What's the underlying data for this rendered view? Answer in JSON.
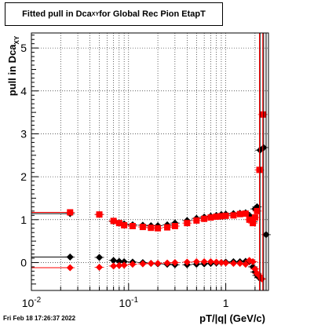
{
  "title": {
    "prefix": "Fitted pull in Dca",
    "subscript": "XY",
    "suffix": " for Global Rec Pion EtapT"
  },
  "footer_timestamp": "Fri Feb 18 17:26:37 2022",
  "colors": {
    "series_black": "#000000",
    "series_red": "#ff0000",
    "grid": "#000000"
  },
  "chart_data": {
    "type": "scatter",
    "title": "Fitted pull in Dca_XY for Global Rec Pion EtapT",
    "xlabel": "pT/|q| (GeV/c)",
    "ylabel": "pull in Dca_XY",
    "xscale": "log",
    "xlim": [
      0.01,
      2.75
    ],
    "ylim": [
      -0.65,
      5.35
    ],
    "grid": true,
    "legend": "none",
    "x_ticks": [
      {
        "value": 0.01,
        "base": "10",
        "exp": "-2"
      },
      {
        "value": 0.1,
        "base": "10",
        "exp": "-1"
      },
      {
        "value": 1,
        "base": "1",
        "exp": ""
      }
    ],
    "y_ticks": [
      "0",
      "1",
      "2",
      "3",
      "4",
      "5"
    ],
    "series": [
      {
        "color": "#000000",
        "marker": "diamond",
        "points": [
          [
            0.025,
            0.13
          ],
          [
            0.05,
            0.12
          ],
          [
            0.07,
            0.05
          ],
          [
            0.08,
            0.03
          ],
          [
            0.09,
            0.02
          ],
          [
            0.11,
            0.01
          ],
          [
            0.14,
            0.0
          ],
          [
            0.17,
            -0.02
          ],
          [
            0.2,
            -0.03
          ],
          [
            0.25,
            -0.04
          ],
          [
            0.3,
            -0.05
          ],
          [
            0.4,
            -0.05
          ],
          [
            0.5,
            -0.04
          ],
          [
            0.6,
            -0.03
          ],
          [
            0.7,
            -0.02
          ],
          [
            0.8,
            -0.01
          ],
          [
            0.9,
            0.0
          ],
          [
            1.0,
            0.01
          ],
          [
            1.2,
            0.02
          ],
          [
            1.4,
            0.02
          ],
          [
            1.6,
            0.03
          ],
          [
            1.75,
            0.02
          ],
          [
            1.9,
            -0.1
          ],
          [
            2.0,
            -0.22
          ],
          [
            2.1,
            -0.3
          ],
          [
            2.2,
            -0.35
          ],
          [
            2.6,
            0.65
          ]
        ]
      },
      {
        "color": "#000000",
        "marker": "diamond",
        "points": [
          [
            0.025,
            1.14
          ],
          [
            0.05,
            1.12
          ],
          [
            0.07,
            0.96
          ],
          [
            0.08,
            0.92
          ],
          [
            0.09,
            0.9
          ],
          [
            0.11,
            0.88
          ],
          [
            0.14,
            0.87
          ],
          [
            0.17,
            0.86
          ],
          [
            0.2,
            0.86
          ],
          [
            0.25,
            0.88
          ],
          [
            0.3,
            0.92
          ],
          [
            0.4,
            0.98
          ],
          [
            0.5,
            1.03
          ],
          [
            0.6,
            1.06
          ],
          [
            0.7,
            1.08
          ],
          [
            0.8,
            1.1
          ],
          [
            0.9,
            1.12
          ],
          [
            1.0,
            1.13
          ],
          [
            1.2,
            1.14
          ],
          [
            1.4,
            1.15
          ],
          [
            1.6,
            1.16
          ],
          [
            1.75,
            1.1
          ],
          [
            1.9,
            0.95
          ],
          [
            2.0,
            1.25
          ],
          [
            2.1,
            1.3
          ],
          [
            2.25,
            2.62
          ],
          [
            2.45,
            2.68
          ]
        ]
      },
      {
        "color": "#ff0000",
        "marker": "diamond",
        "points": [
          [
            0.025,
            -0.12
          ],
          [
            0.05,
            -0.11
          ],
          [
            0.07,
            -0.08
          ],
          [
            0.08,
            -0.07
          ],
          [
            0.09,
            -0.06
          ],
          [
            0.11,
            -0.04
          ],
          [
            0.14,
            -0.03
          ],
          [
            0.17,
            -0.02
          ],
          [
            0.2,
            -0.02
          ],
          [
            0.25,
            -0.01
          ],
          [
            0.3,
            0.0
          ],
          [
            0.4,
            0.01
          ],
          [
            0.5,
            0.02
          ],
          [
            0.6,
            0.02
          ],
          [
            0.7,
            0.02
          ],
          [
            0.8,
            0.01
          ],
          [
            0.9,
            0.0
          ],
          [
            1.0,
            -0.01
          ],
          [
            1.2,
            -0.02
          ],
          [
            1.4,
            -0.02
          ],
          [
            1.6,
            -0.04
          ],
          [
            1.75,
            0.05
          ],
          [
            1.9,
            0.02
          ],
          [
            2.0,
            -0.15
          ],
          [
            2.1,
            -0.25
          ],
          [
            2.2,
            -0.3
          ],
          [
            2.35,
            -0.38
          ]
        ]
      },
      {
        "color": "#ff0000",
        "marker": "square",
        "points": [
          [
            0.025,
            1.17
          ],
          [
            0.05,
            1.12
          ],
          [
            0.07,
            0.97
          ],
          [
            0.08,
            0.92
          ],
          [
            0.09,
            0.87
          ],
          [
            0.11,
            0.85
          ],
          [
            0.14,
            0.83
          ],
          [
            0.17,
            0.81
          ],
          [
            0.2,
            0.8
          ],
          [
            0.25,
            0.82
          ],
          [
            0.3,
            0.85
          ],
          [
            0.4,
            0.92
          ],
          [
            0.5,
            0.98
          ],
          [
            0.6,
            1.02
          ],
          [
            0.7,
            1.05
          ],
          [
            0.8,
            1.07
          ],
          [
            0.9,
            1.08
          ],
          [
            1.0,
            1.09
          ],
          [
            1.2,
            1.1
          ],
          [
            1.4,
            1.13
          ],
          [
            1.6,
            1.14
          ],
          [
            1.75,
            1.0
          ],
          [
            1.9,
            0.92
          ],
          [
            2.0,
            1.05
          ],
          [
            2.1,
            1.2
          ],
          [
            2.22,
            2.16
          ],
          [
            2.4,
            3.45
          ]
        ]
      }
    ]
  }
}
